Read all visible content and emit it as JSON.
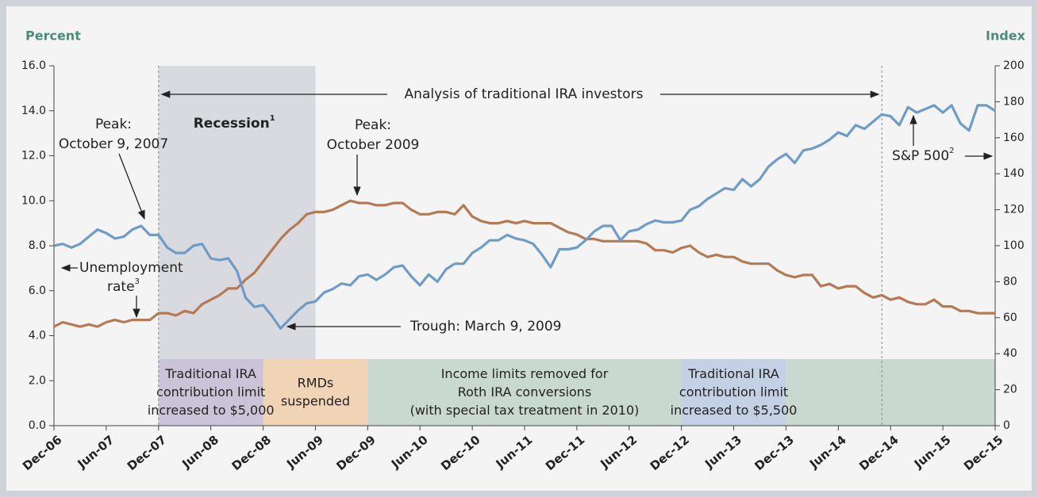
{
  "chart_data": {
    "type": "line",
    "y_label": "Percent",
    "y2_label": "Index",
    "categories": [
      "Dec-06",
      null,
      null,
      null,
      null,
      null,
      "Jun-07",
      null,
      null,
      null,
      null,
      null,
      "Dec-07",
      null,
      null,
      null,
      null,
      null,
      "Jun-08",
      null,
      null,
      null,
      null,
      null,
      "Dec-08",
      null,
      null,
      null,
      null,
      null,
      "Jun-09",
      null,
      null,
      null,
      null,
      null,
      "Dec-09",
      null,
      null,
      null,
      null,
      null,
      "Jun-10",
      null,
      null,
      null,
      null,
      null,
      "Dec-10",
      null,
      null,
      null,
      null,
      null,
      "Jun-11",
      null,
      null,
      null,
      null,
      null,
      "Dec-11",
      null,
      null,
      null,
      null,
      null,
      "Jun-12",
      null,
      null,
      null,
      null,
      null,
      "Dec-12",
      null,
      null,
      null,
      null,
      null,
      "Jun-13",
      null,
      null,
      null,
      null,
      null,
      "Dec-13",
      null,
      null,
      null,
      null,
      null,
      "Jun-14",
      null,
      null,
      null,
      null,
      null,
      "Dec-14",
      null,
      null,
      null,
      null,
      null,
      "Jun-15",
      null,
      null,
      null,
      null,
      null,
      "Dec-15"
    ],
    "series": [
      {
        "label_lines": [
          "Unemployment",
          "rate"
        ],
        "note": "3",
        "color": "#b47a56",
        "axis": "y",
        "values": [
          4.4,
          4.6,
          4.5,
          4.4,
          4.5,
          4.4,
          4.6,
          4.7,
          4.6,
          4.7,
          4.7,
          4.7,
          5.0,
          5.0,
          4.9,
          5.1,
          5.0,
          5.4,
          5.6,
          5.8,
          6.1,
          6.1,
          6.5,
          6.8,
          7.3,
          7.8,
          8.3,
          8.7,
          9.0,
          9.4,
          9.5,
          9.5,
          9.6,
          9.8,
          10.0,
          9.9,
          9.9,
          9.8,
          9.8,
          9.9,
          9.9,
          9.6,
          9.4,
          9.4,
          9.5,
          9.5,
          9.4,
          9.8,
          9.3,
          9.1,
          9.0,
          9.0,
          9.1,
          9.0,
          9.1,
          9.0,
          9.0,
          9.0,
          8.8,
          8.6,
          8.5,
          8.3,
          8.3,
          8.2,
          8.2,
          8.2,
          8.2,
          8.2,
          8.1,
          7.8,
          7.8,
          7.7,
          7.9,
          8.0,
          7.7,
          7.5,
          7.6,
          7.5,
          7.5,
          7.3,
          7.2,
          7.2,
          7.2,
          6.9,
          6.7,
          6.6,
          6.7,
          6.7,
          6.2,
          6.3,
          6.1,
          6.2,
          6.2,
          5.9,
          5.7,
          5.8,
          5.6,
          5.7,
          5.5,
          5.4,
          5.4,
          5.6,
          5.3,
          5.3,
          5.1,
          5.1,
          5.0,
          5.0,
          5.0
        ]
      },
      {
        "name": "S&P 500",
        "note": "2",
        "color": "#6f9cc6",
        "axis": "y2",
        "values": [
          100,
          101,
          99,
          101,
          105,
          109,
          107,
          104,
          105,
          109,
          111,
          106,
          106,
          99,
          96,
          96,
          100,
          101,
          93,
          92,
          93,
          86,
          71,
          66,
          67,
          61,
          54,
          59,
          64,
          68,
          69,
          74,
          76,
          79,
          78,
          83,
          84,
          81,
          84,
          88,
          89,
          83,
          78,
          84,
          80,
          87,
          90,
          90,
          96,
          99,
          103,
          103,
          106,
          104,
          103,
          101,
          95,
          88,
          98,
          98,
          99,
          103,
          108,
          111,
          111,
          103,
          108,
          109,
          112,
          114,
          113,
          113,
          114,
          120,
          122,
          126,
          129,
          132,
          131,
          137,
          133,
          137,
          144,
          148,
          151,
          146,
          153,
          154,
          156,
          159,
          163,
          161,
          167,
          165,
          169,
          173,
          172,
          167,
          177,
          174,
          176,
          178,
          174,
          178,
          168,
          164,
          178,
          178,
          175
        ]
      }
    ],
    "ylim": [
      0,
      16
    ],
    "yticks": [
      {
        "value": 0,
        "label": "0.0"
      },
      {
        "value": 2,
        "label": "2.0"
      },
      {
        "value": 4,
        "label": "4.0"
      },
      {
        "value": 6,
        "label": "6.0"
      },
      {
        "value": 8,
        "label": "8.0"
      },
      {
        "value": 10,
        "label": "10.0"
      },
      {
        "value": 12,
        "label": "12.0"
      },
      {
        "value": 14,
        "label": "14.0"
      },
      {
        "value": 16,
        "label": "16.0"
      }
    ],
    "y2lim": [
      0,
      200
    ],
    "y2ticks": [
      0,
      20,
      40,
      60,
      80,
      100,
      120,
      140,
      160,
      180,
      200
    ],
    "recession": {
      "text": "Recession",
      "note": "1",
      "color": "#d9dae0"
    },
    "analysis": "Analysis of traditional IRA investors",
    "peak_2007": [
      "Peak:",
      "October 9, 2007"
    ],
    "peak_2009": [
      "Peak:",
      "October 2009"
    ],
    "trough": "Trough: March 9, 2009",
    "bands": [
      {
        "lines": [
          "Traditional IRA",
          "contribution limit",
          "increased to $5,000"
        ],
        "color": "#cbc4d8"
      },
      {
        "lines": [
          "RMDs",
          "suspended"
        ],
        "color": "#f1d3b6"
      },
      {
        "lines": [
          "Income limits removed for",
          "Roth IRA conversions",
          "(with special tax treatment in 2010)"
        ],
        "color": "#c9d9d1"
      },
      {
        "lines": [
          "Traditional IRA",
          "contribution limit",
          "increased to $5,500"
        ],
        "color": "#c4d1e5"
      }
    ]
  }
}
